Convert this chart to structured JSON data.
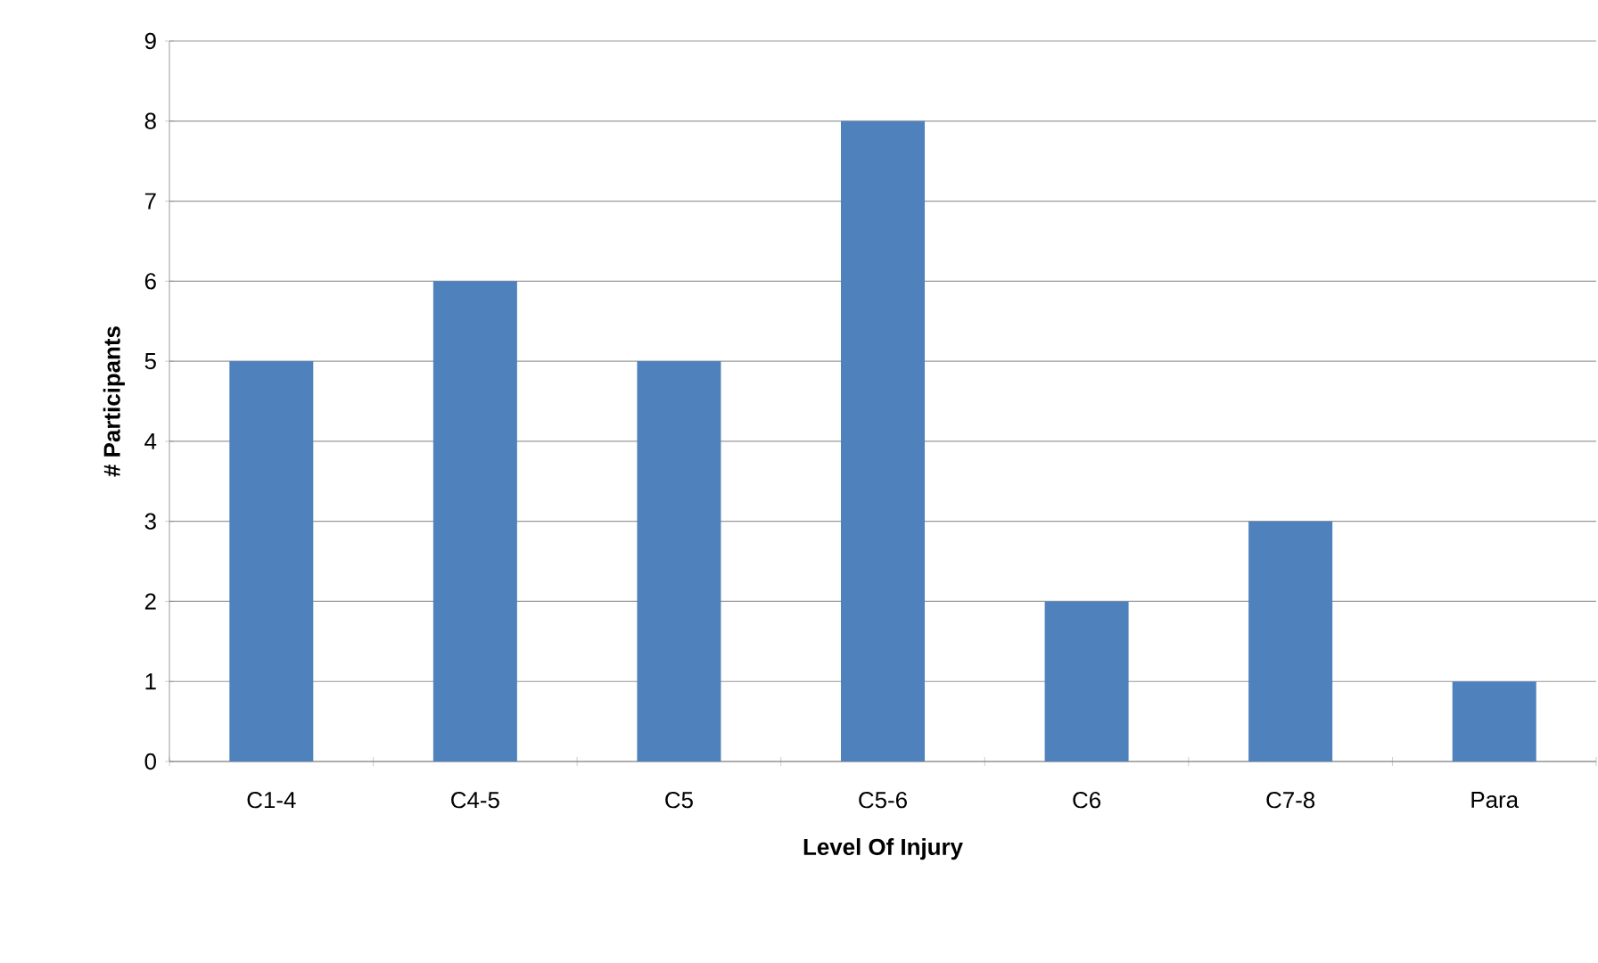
{
  "chart_data": {
    "type": "bar",
    "xlabel": "Level Of Injury",
    "ylabel": "# Participants",
    "categories": [
      "C1-4",
      "C4-5",
      "C5",
      "C5-6",
      "C6",
      "C7-8",
      "Para"
    ],
    "values": [
      5,
      6,
      5,
      8,
      2,
      3,
      1
    ],
    "color": "#4f81bd",
    "ylim": [
      0,
      9
    ],
    "yticks": [
      0,
      1,
      2,
      3,
      4,
      5,
      6,
      7,
      8,
      9
    ],
    "grid": "y"
  }
}
